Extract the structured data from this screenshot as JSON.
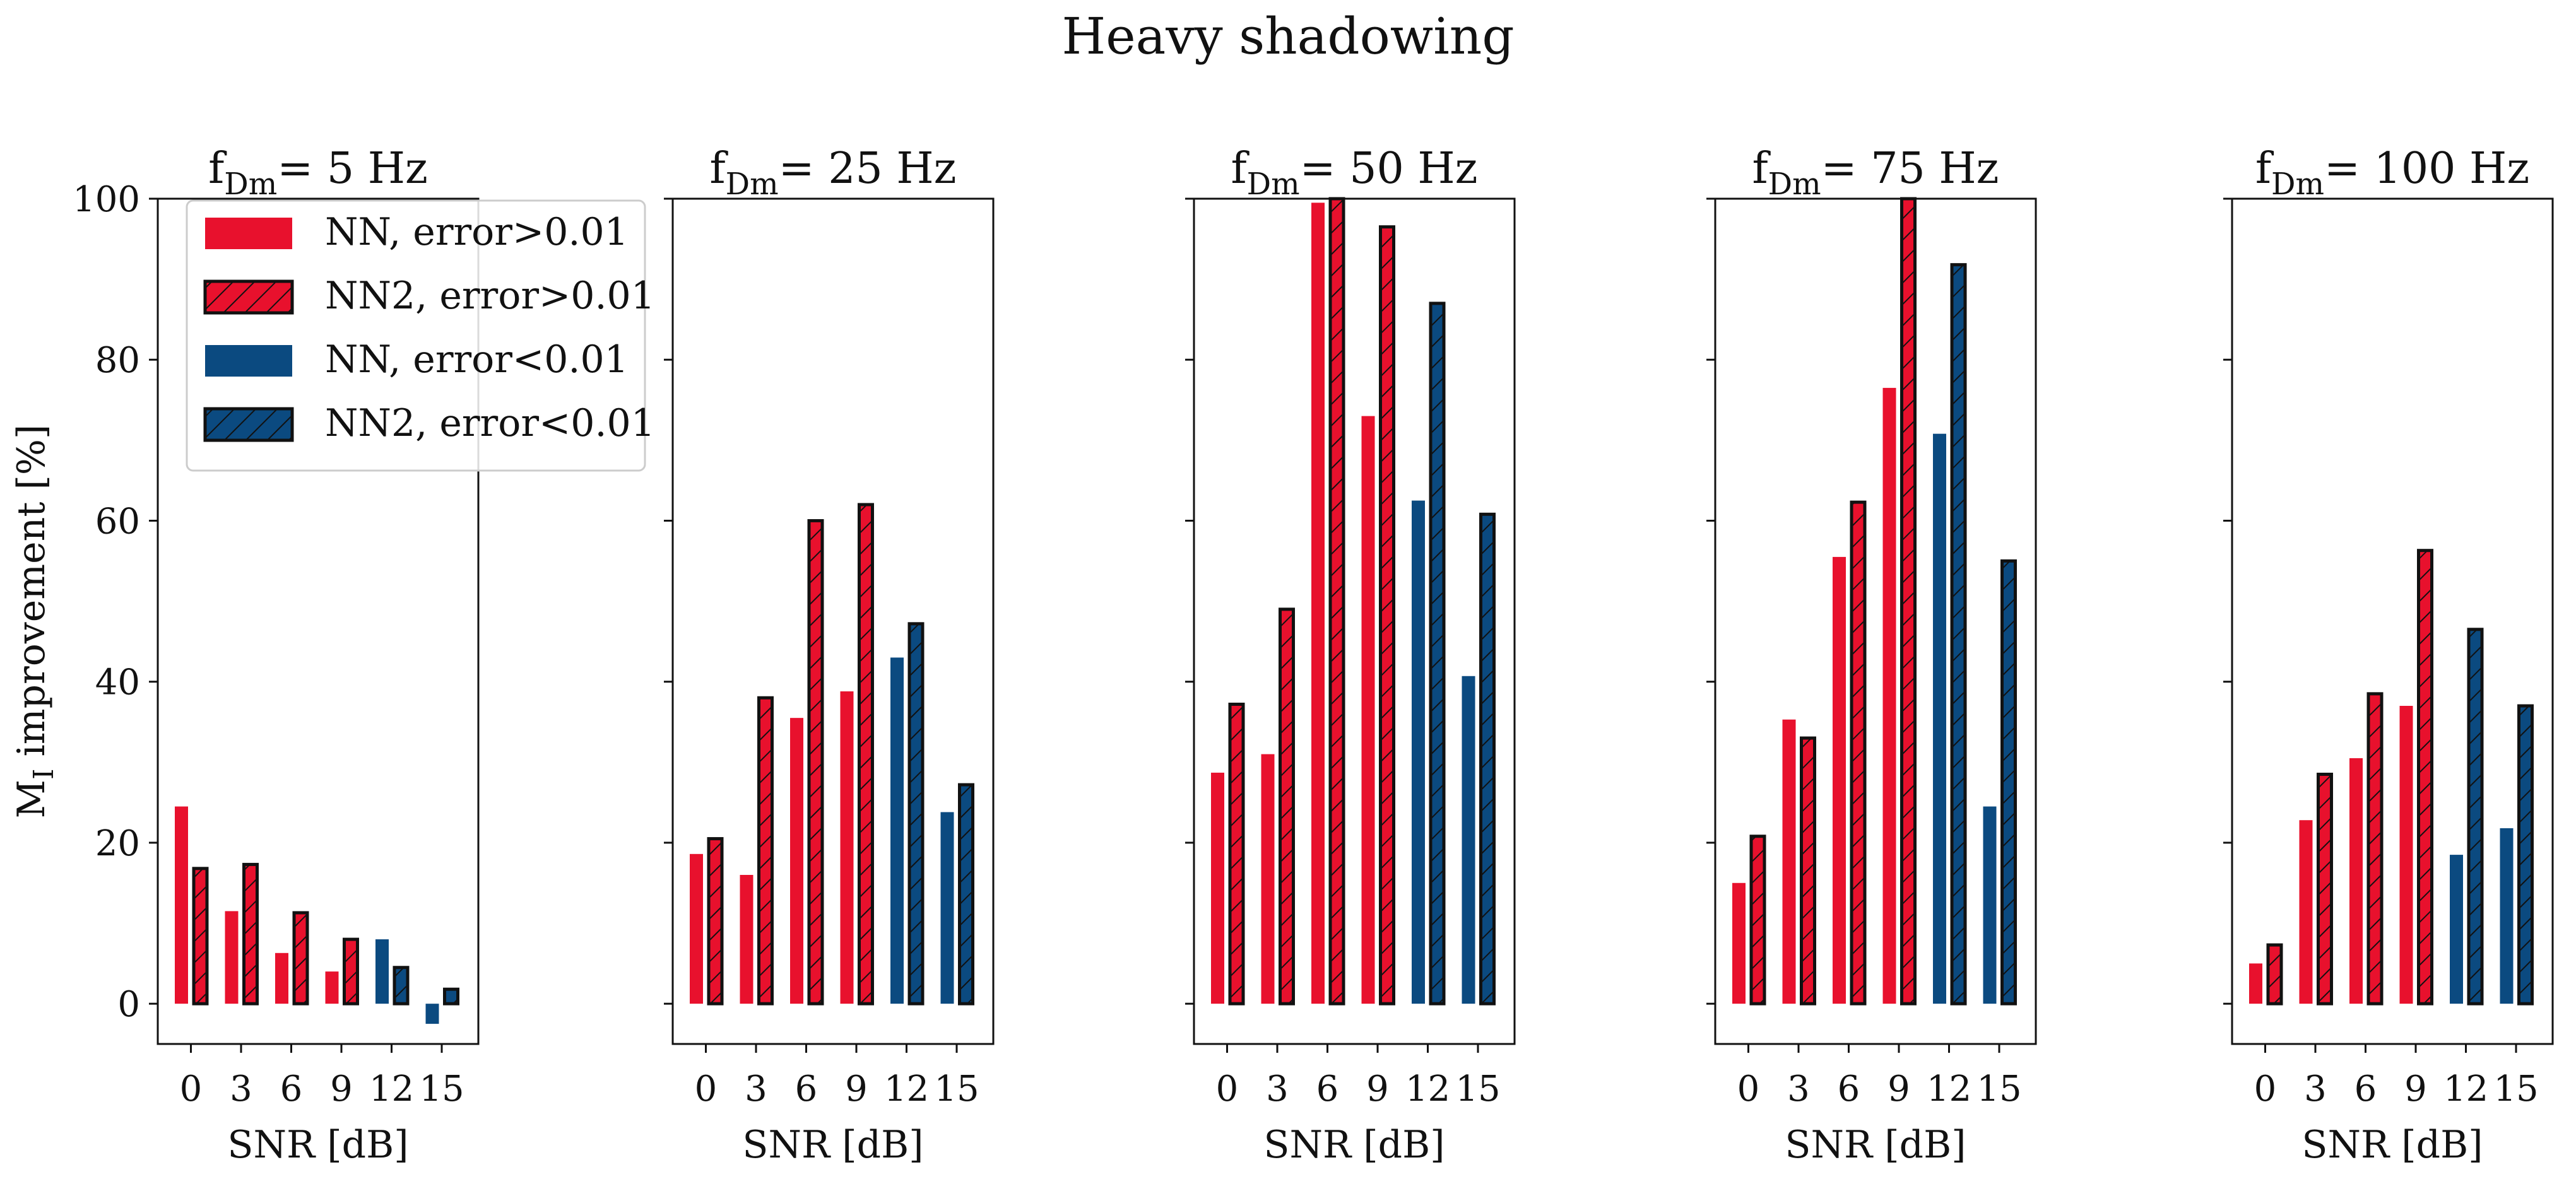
{
  "figure_title": "Heavy shadowing",
  "colors": {
    "red": "#e8112d",
    "blue": "#0b4a80",
    "axis": "#111111",
    "hatch": "#111111"
  },
  "chart_data": {
    "type": "bar",
    "title": "Heavy shadowing",
    "ylabel": "M_I improvement [%]",
    "ylabel_main": "M",
    "ylabel_sub": "I",
    "ylabel_rest": " improvement [%]",
    "xlabel": "SNR [dB]",
    "ylim": [
      -5,
      100
    ],
    "yticks": [
      0,
      20,
      40,
      60,
      80,
      100
    ],
    "categories": [
      "0",
      "3",
      "6",
      "9",
      "12",
      "15"
    ],
    "grid": false,
    "legend": {
      "placement": "top-left of first panel",
      "entries": [
        {
          "label": "NN, error>0.01",
          "color": "red",
          "hatched": false
        },
        {
          "label": "NN2, error>0.01",
          "color": "red",
          "hatched": true
        },
        {
          "label": "NN, error<0.01",
          "color": "blue",
          "hatched": false
        },
        {
          "label": "NN2, error<0.01",
          "color": "blue",
          "hatched": true
        }
      ]
    },
    "panels": [
      {
        "title": "f_Dm= 5 Hz",
        "title_main": "f",
        "title_sub": "Dm",
        "title_rest": "= 5 Hz",
        "nn": [
          24.5,
          11.5,
          6.3,
          4.0,
          8.0,
          -2.5
        ],
        "nn2": [
          16.8,
          17.3,
          11.3,
          8.0,
          4.5,
          1.8
        ]
      },
      {
        "title": "f_Dm= 25 Hz",
        "title_main": "f",
        "title_sub": "Dm",
        "title_rest": "= 25 Hz",
        "nn": [
          18.6,
          16.0,
          35.5,
          38.8,
          43.0,
          23.8
        ],
        "nn2": [
          20.5,
          38.0,
          60.0,
          62.0,
          47.2,
          27.2
        ]
      },
      {
        "title": "f_Dm= 50 Hz",
        "title_main": "f",
        "title_sub": "Dm",
        "title_rest": "= 50 Hz",
        "nn": [
          28.7,
          31.0,
          99.5,
          73.0,
          62.5,
          40.7
        ],
        "nn2": [
          37.2,
          49.0,
          100.0,
          96.5,
          87.0,
          60.8
        ]
      },
      {
        "title": "f_Dm= 75 Hz",
        "title_main": "f",
        "title_sub": "Dm",
        "title_rest": "= 75 Hz",
        "nn": [
          15.0,
          35.3,
          55.5,
          76.5,
          70.8,
          24.5
        ],
        "nn2": [
          20.8,
          33.0,
          62.3,
          100.0,
          91.8,
          55.0
        ]
      },
      {
        "title": "f_Dm= 100 Hz",
        "title_main": "f",
        "title_sub": "Dm",
        "title_rest": "= 100 Hz",
        "nn": [
          5.0,
          22.8,
          30.5,
          37.0,
          18.5,
          21.8
        ],
        "nn2": [
          7.3,
          28.5,
          38.5,
          56.3,
          46.5,
          37.0
        ]
      }
    ]
  }
}
